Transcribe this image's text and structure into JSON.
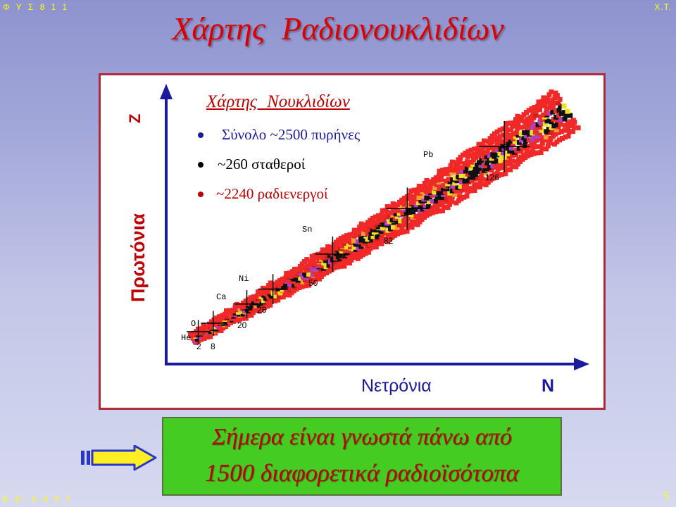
{
  "header": {
    "course": "Φ Υ Σ 8 1 1",
    "author": "X.T."
  },
  "footer": {
    "term": "Ε Ε: 2 0 0 7",
    "page": "5"
  },
  "title": "Χάρτης Ραδιονουκλιδίων",
  "chart": {
    "subtitle": "Χάρτης Νουκλιδίων",
    "bullets": [
      "Σύνολο ~2500 πυρήνες",
      "~260 σταθεροί",
      "~2240 ραδιενεργοί"
    ],
    "bullet_colors": [
      "#1a1aa0",
      "#000000",
      "#c00000"
    ],
    "z_label": "Z",
    "y_label": "Πρωτόνια",
    "x_label": "Νετρόνια",
    "n_label": "N",
    "elements": [
      "He",
      "O",
      "Ca",
      "Ni",
      "Sn",
      "Pb"
    ],
    "magic_numbers": [
      "2",
      "8",
      "20",
      "28",
      "50",
      "82",
      "126"
    ]
  },
  "note": {
    "line1": "Σήμερα είναι γνωστά πάνω από",
    "line2": "1500 διαφορετικά ραδιοϊσότοπα"
  }
}
